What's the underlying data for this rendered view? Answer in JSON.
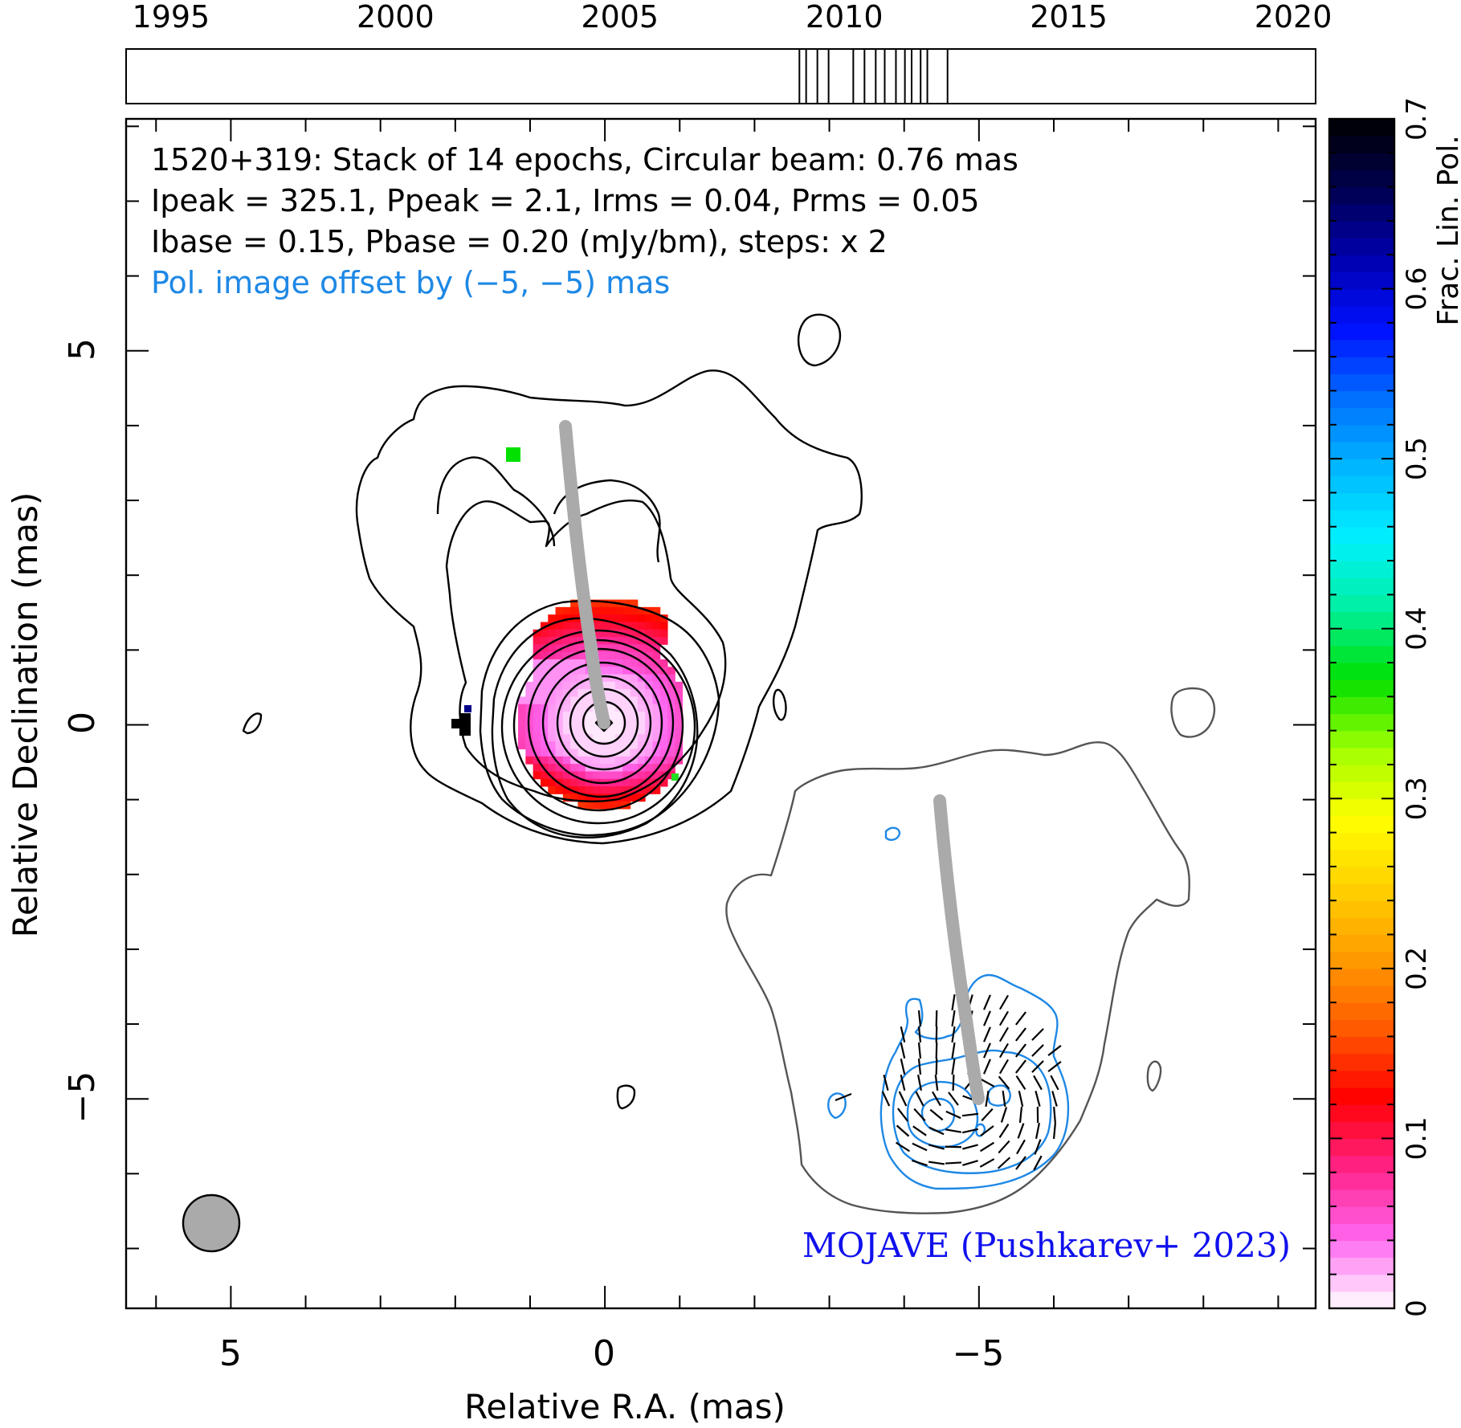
{
  "chart_data": {
    "type": "heatmap",
    "source": "1520+319",
    "header_lines": [
      "1520+319: Stack of 14 epochs, Circular beam: 0.76 mas",
      "Ipeak = 325.1, Ppeak = 2.1, Irms = 0.04, Prms = 0.05",
      "Ibase = 0.15, Pbase = 0.20 (mJy/bm), steps: x 2"
    ],
    "offset_note": "Pol. image offset by (−5, −5) mas",
    "credit": "MOJAVE (Pushkarev+ 2023)",
    "xlabel": "Relative R.A. (mas)",
    "ylabel": "Relative Declination (mas)",
    "xlim": [
      6.4,
      -9.5
    ],
    "ylim": [
      -7.8,
      8.1
    ],
    "x_ticks": [
      5,
      0,
      -5
    ],
    "x_tick_labels": [
      "5",
      "0",
      "−5"
    ],
    "y_ticks": [
      5,
      0,
      -5
    ],
    "y_tick_labels": [
      "5",
      "0",
      "−5"
    ],
    "colorbar": {
      "label": "Frac. Lin. Pol.",
      "range": [
        0,
        0.7
      ],
      "ticks": [
        0,
        0.1,
        0.2,
        0.3,
        0.4,
        0.5,
        0.6,
        0.7
      ],
      "tick_labels": [
        "0",
        "0.1",
        "0.2",
        "0.3",
        "0.4",
        "0.5",
        "0.6",
        "0.7"
      ],
      "colors": [
        "#ffffff",
        "#ff66f0",
        "#ff2288",
        "#ff0000",
        "#ff5a00",
        "#ff9a00",
        "#ffd000",
        "#ffff00",
        "#a0ff00",
        "#00e000",
        "#00f0a0",
        "#00f0ff",
        "#00b8ff",
        "#0070ff",
        "#0010ff",
        "#0000b0",
        "#000050",
        "#000000"
      ]
    },
    "timeline": {
      "range": [
        1994.0,
        2020.5
      ],
      "tick_labels": [
        "1995",
        "2000",
        "2005",
        "2010",
        "2015",
        "2020"
      ],
      "tick_years": [
        1995,
        2000,
        2005,
        2010,
        2015,
        2020
      ],
      "epochs": [
        2009.0,
        2009.15,
        2009.4,
        2009.65,
        2010.2,
        2010.45,
        2010.7,
        2010.9,
        2011.15,
        2011.35,
        2011.5,
        2011.7,
        2011.85,
        2012.3
      ]
    },
    "beam_diameter_mas": 0.76,
    "ridge_line": [
      [
        0.55,
        4.0
      ],
      [
        0.45,
        3.0
      ],
      [
        0.35,
        2.0
      ],
      [
        0.25,
        1.0
      ],
      [
        0.12,
        0.3
      ],
      [
        0.0,
        0.0
      ]
    ],
    "colors": {
      "stokes_i_contours": "#000000",
      "pol_i_contour": "#555555",
      "pol_contours": "#1e88e5",
      "ridge": "#aaaaaa",
      "beam": "#aaaaaa",
      "offset_note": "#1e88e5",
      "credit": "#1010ee"
    }
  }
}
